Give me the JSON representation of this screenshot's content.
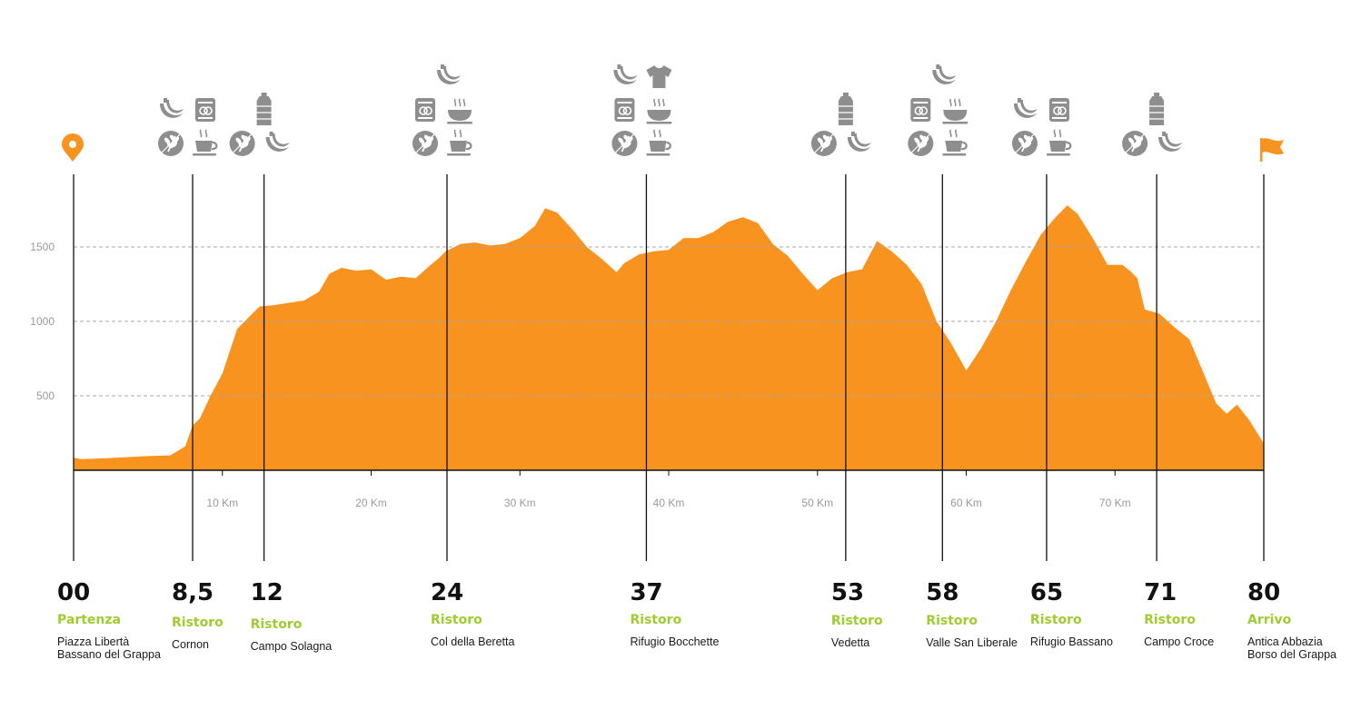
{
  "colors": {
    "profile": "#f7931e",
    "accent": "#f7931e",
    "label_green": "#9fcc2e",
    "icon_gray": "#8e8e8e",
    "grid": "#a9a9a9",
    "tick_text": "#9a9a9a"
  },
  "chart_data": {
    "type": "area",
    "title": "",
    "xlabel": "",
    "ylabel": "",
    "xlim": [
      0,
      80
    ],
    "ylim": [
      0,
      1900
    ],
    "grid": "dashed horizontal",
    "y_ticks": [
      "500",
      "1000",
      "1500"
    ],
    "y_tick_values": [
      500,
      1000,
      1500
    ],
    "x_ticks": [
      "10 Km",
      "20 Km",
      "30 Km",
      "40 Km",
      "50 Km",
      "60 Km",
      "70 Km"
    ],
    "x_tick_values": [
      10,
      20,
      30,
      40,
      50,
      60,
      70
    ],
    "series": [
      {
        "x": [
          0,
          0.5,
          2,
          5,
          6.5,
          7.5,
          8.0,
          8.5,
          9.2,
          10,
          11,
          11.5,
          12,
          12.5,
          13.5,
          15.5,
          16.5,
          17.2,
          18,
          19,
          20,
          21,
          22,
          23,
          24,
          24.5,
          25,
          26,
          27,
          28,
          29,
          30,
          31,
          31.7,
          32.5,
          33.5,
          34.5,
          35.5,
          36.5,
          37,
          38,
          39,
          40,
          41,
          42,
          43,
          44,
          45,
          46,
          47,
          48,
          49,
          50,
          51,
          52,
          53,
          54,
          55,
          56,
          57,
          58,
          59,
          60,
          61,
          62,
          63,
          64,
          65,
          65.5,
          66,
          66.8,
          67.5,
          68.5,
          69.5,
          70.5,
          71,
          71.5,
          72,
          73,
          74,
          75,
          76,
          76.8,
          77.5,
          78.2,
          79,
          80
        ],
        "y": [
          85,
          75,
          80,
          95,
          100,
          160,
          300,
          350,
          500,
          650,
          950,
          1000,
          1050,
          1100,
          1110,
          1140,
          1200,
          1320,
          1360,
          1340,
          1350,
          1280,
          1300,
          1290,
          1380,
          1420,
          1470,
          1520,
          1530,
          1510,
          1520,
          1560,
          1640,
          1760,
          1730,
          1620,
          1500,
          1420,
          1330,
          1390,
          1450,
          1470,
          1480,
          1560,
          1560,
          1600,
          1670,
          1700,
          1660,
          1520,
          1440,
          1320,
          1210,
          1290,
          1330,
          1350,
          1540,
          1470,
          1380,
          1250,
          1000,
          850,
          670,
          820,
          1000,
          1210,
          1400,
          1580,
          1640,
          1700,
          1780,
          1720,
          1560,
          1380,
          1380,
          1340,
          1290,
          1080,
          1050,
          960,
          880,
          640,
          450,
          380,
          440,
          340,
          180
        ]
      }
    ]
  },
  "checkpoints": [
    {
      "km_value": 0,
      "km": "00",
      "type": "Partenza",
      "name1": "Piazza Libertà",
      "name2": "Bassano del Grappa",
      "marker": "location-pin-icon",
      "icons": []
    },
    {
      "km_value": 8,
      "km": "8,5",
      "type": "Ristoro",
      "name1": "Cornon",
      "name2": "",
      "icons": [
        [
          "banana-icon",
          "gel-pack-icon"
        ],
        [
          "grain-icon",
          "coffee-cup-icon"
        ]
      ]
    },
    {
      "km_value": 12.8,
      "km": "12",
      "type": "Ristoro",
      "name1": "Campo Solagna",
      "name2": "",
      "icons": [
        [
          "water-bottle-icon"
        ],
        [
          "grain-icon",
          "banana-icon"
        ]
      ]
    },
    {
      "km_value": 25.1,
      "km": "24",
      "type": "Ristoro",
      "name1": "Col della Beretta",
      "name2": "",
      "icons": [
        [
          "banana-icon"
        ],
        [
          "gel-pack-icon",
          "soup-bowl-icon"
        ],
        [
          "grain-icon",
          "coffee-cup-icon"
        ]
      ]
    },
    {
      "km_value": 38.5,
      "km": "37",
      "type": "Ristoro",
      "name1": "Rifugio Bocchette",
      "name2": "",
      "icons": [
        [
          "banana-icon",
          "tshirt-icon"
        ],
        [
          "gel-pack-icon",
          "soup-bowl-icon"
        ],
        [
          "grain-icon",
          "coffee-cup-icon"
        ]
      ]
    },
    {
      "km_value": 51.9,
      "km": "53",
      "type": "Ristoro",
      "name1": "Vedetta",
      "name2": "",
      "icons": [
        [
          "water-bottle-icon"
        ],
        [
          "grain-icon",
          "banana-icon"
        ]
      ]
    },
    {
      "km_value": 58.4,
      "km": "58",
      "type": "Ristoro",
      "name1": "Valle San Liberale",
      "name2": "",
      "icons": [
        [
          "banana-icon"
        ],
        [
          "gel-pack-icon",
          "soup-bowl-icon"
        ],
        [
          "grain-icon",
          "coffee-cup-icon"
        ]
      ]
    },
    {
      "km_value": 65.4,
      "km": "65",
      "type": "Ristoro",
      "name1": "Rifugio Bassano",
      "name2": "",
      "icons": [
        [
          "banana-icon",
          "gel-pack-icon"
        ],
        [
          "grain-icon",
          "coffee-cup-icon"
        ]
      ]
    },
    {
      "km_value": 72.8,
      "km": "71",
      "type": "Ristoro",
      "name1": "Campo Croce",
      "name2": "",
      "icons": [
        [
          "water-bottle-icon"
        ],
        [
          "grain-icon",
          "banana-icon"
        ]
      ]
    },
    {
      "km_value": 80,
      "km": "80",
      "type": "Arrivo",
      "name1": "Antica Abbazia",
      "name2": "Borso del Grappa",
      "marker": "finish-flag-icon",
      "icons": []
    }
  ]
}
